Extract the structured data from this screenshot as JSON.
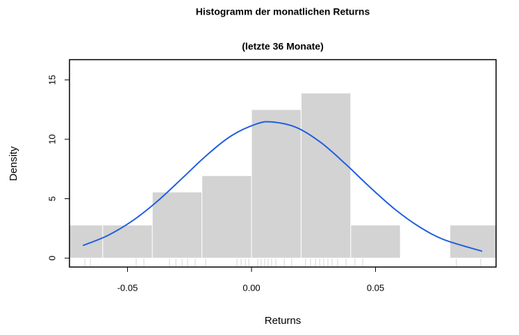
{
  "chart_data": {
    "type": "histogram",
    "title": "Histogramm der monatlichen Returns",
    "subtitle": "(letzte 36 Monate)",
    "xlabel": "Returns",
    "ylabel": "Density",
    "bins": [
      -0.08,
      -0.06,
      -0.04,
      -0.02,
      0,
      0.02,
      0.04,
      0.06,
      0.08,
      0.1
    ],
    "values": [
      2.78,
      2.78,
      5.56,
      6.94,
      12.5,
      13.89,
      2.78,
      0,
      2.78
    ],
    "color": "#d3d3d3",
    "xlim": [
      -0.0734,
      0.0986
    ],
    "ylim": [
      -0.75,
      16.7
    ],
    "xticks": [
      {
        "value": -0.05,
        "label": "-0.05"
      },
      {
        "value": 0,
        "label": "0.00"
      },
      {
        "value": 0.05,
        "label": "0.05"
      }
    ],
    "yticks": [
      0,
      5,
      10,
      15
    ],
    "density_curve": {
      "color": "#1f5fe0",
      "x": [
        -0.068,
        -0.058,
        -0.048,
        -0.038,
        -0.028,
        -0.018,
        -0.008,
        0.002,
        0.008,
        0.018,
        0.028,
        0.038,
        0.048,
        0.058,
        0.068,
        0.078,
        0.093
      ],
      "y": [
        1.06,
        1.9,
        3.14,
        4.78,
        6.71,
        8.67,
        10.31,
        11.29,
        11.46,
        11.0,
        9.72,
        7.9,
        5.92,
        4.08,
        2.59,
        1.52,
        0.58
      ]
    },
    "rug": [
      -0.0672,
      -0.065,
      -0.0465,
      -0.0434,
      -0.0331,
      -0.0305,
      -0.028,
      -0.0258,
      -0.0227,
      -0.0185,
      -0.0059,
      -0.0042,
      -0.0025,
      -0.0011,
      0.0025,
      0.0039,
      0.0053,
      0.0067,
      0.0081,
      0.0098,
      0.0132,
      0.0162,
      0.0218,
      0.0238,
      0.0258,
      0.0275,
      0.0291,
      0.0308,
      0.0325,
      0.0347,
      0.0381,
      0.0417,
      0.0448,
      0.0826,
      0.0924
    ]
  }
}
